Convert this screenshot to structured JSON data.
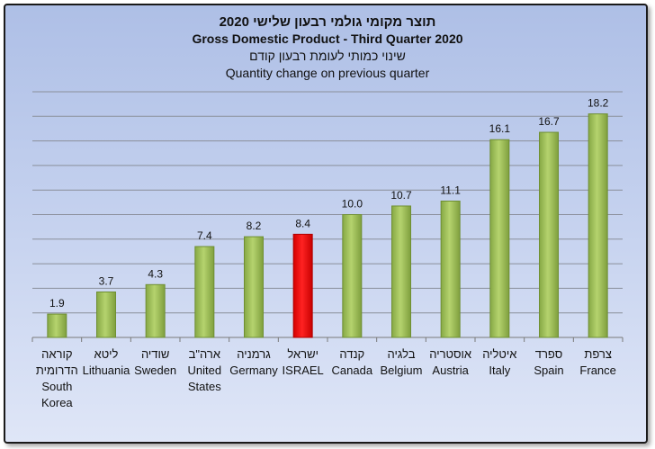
{
  "chart_data": {
    "type": "bar",
    "title_he": "תוצר מקומי גולמי רבעון שלישי 2020",
    "title_en": "Gross Domestic Product - Third Quarter 2020",
    "subtitle_he": "שינוי כמותי לעומת רבעון קודם",
    "subtitle_en": "Quantity change on previous quarter",
    "categories": [
      {
        "he": "קוראה הדרומית",
        "en": "South Korea"
      },
      {
        "he": "ליטא",
        "en": "Lithuania"
      },
      {
        "he": "שודיה",
        "en": "Sweden"
      },
      {
        "he": "ארה\"ב",
        "en": "United States"
      },
      {
        "he": "גרמניה",
        "en": "Germany"
      },
      {
        "he": "ישראל",
        "en": "ISRAEL"
      },
      {
        "he": "קנדה",
        "en": "Canada"
      },
      {
        "he": "בלגיה",
        "en": "Belgium"
      },
      {
        "he": "אוסטריה",
        "en": "Austria"
      },
      {
        "he": "איטליה",
        "en": "Italy"
      },
      {
        "he": "ספרד",
        "en": "Spain"
      },
      {
        "he": "צרפת",
        "en": "France"
      }
    ],
    "values": [
      1.9,
      3.7,
      4.3,
      7.4,
      8.2,
      8.4,
      10.0,
      10.7,
      11.1,
      16.1,
      16.7,
      18.2
    ],
    "value_labels": [
      "1.9",
      "3.7",
      "4.3",
      "7.4",
      "8.2",
      "8.4",
      "10.0",
      "10.7",
      "11.1",
      "16.1",
      "16.7",
      "18.2"
    ],
    "highlight_index": 5,
    "ylim": [
      0,
      20
    ],
    "grid": true,
    "colors": {
      "bar": "#9bbb59",
      "bar_dark": "#6f8f33",
      "highlight": "#ff0000",
      "highlight_dark": "#b00000"
    }
  }
}
